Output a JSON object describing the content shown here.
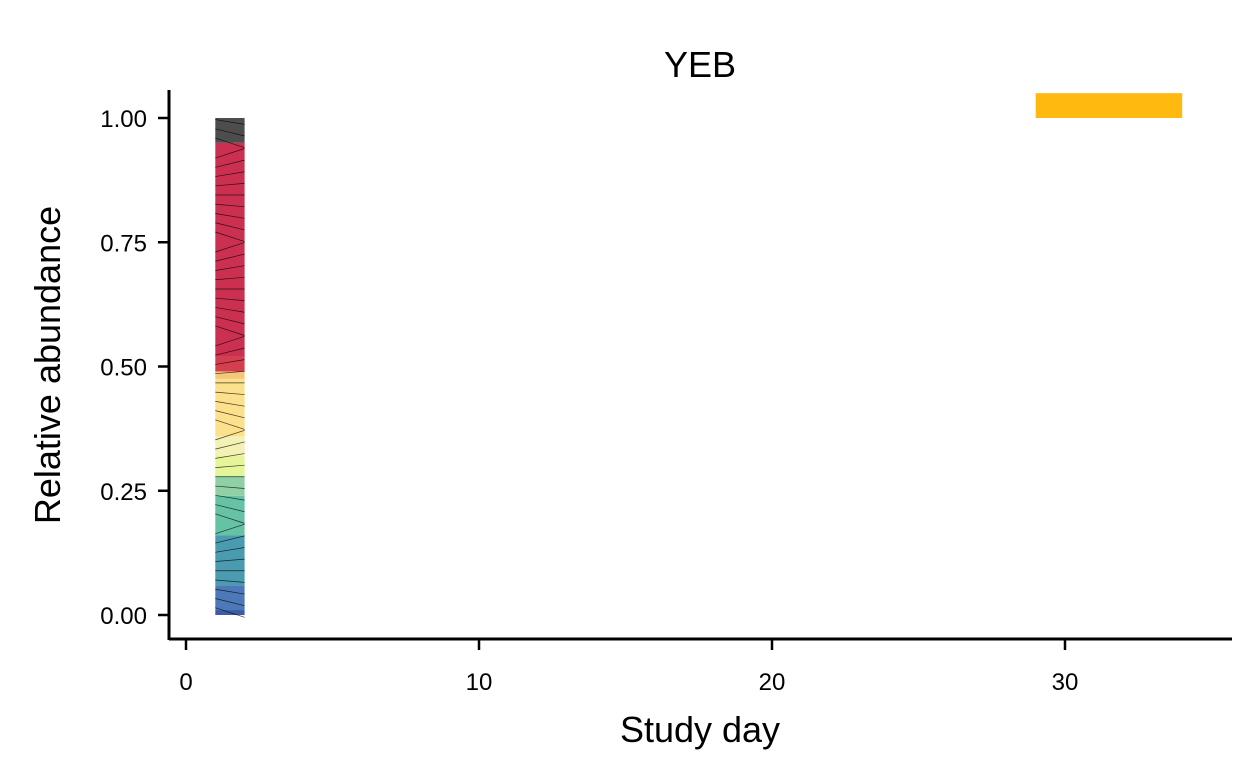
{
  "chart_data": {
    "type": "area",
    "title": "YEB",
    "xlabel": "Study day",
    "ylabel": "Relative abundance",
    "xlim": [
      -0.6,
      35.8
    ],
    "ylim": [
      -0.045,
      1.05
    ],
    "x_ticks": [
      0,
      10,
      20,
      30
    ],
    "x_tick_labels": [
      "0",
      "10",
      "20",
      "30"
    ],
    "y_ticks": [
      0,
      0.25,
      0.5,
      0.75,
      1.0
    ],
    "y_tick_labels": [
      "0.00",
      "0.25",
      "0.50",
      "0.75",
      "1.00"
    ],
    "x_range_of_stack": [
      1,
      2
    ],
    "stack": [
      {
        "color": "#3b5ba8",
        "bottom": 0.0,
        "top": 0.01
      },
      {
        "color": "#4e79b8",
        "bottom": 0.01,
        "top": 0.06
      },
      {
        "color": "#4a9bb0",
        "bottom": 0.06,
        "top": 0.16
      },
      {
        "color": "#66c2a5",
        "bottom": 0.16,
        "top": 0.24
      },
      {
        "color": "#8fd1a5",
        "bottom": 0.24,
        "top": 0.28
      },
      {
        "color": "#e6f598",
        "bottom": 0.28,
        "top": 0.32
      },
      {
        "color": "#f3f1b3",
        "bottom": 0.32,
        "top": 0.36
      },
      {
        "color": "#fde08b",
        "bottom": 0.36,
        "top": 0.475
      },
      {
        "color": "#f5c77a",
        "bottom": 0.475,
        "top": 0.49
      },
      {
        "color": "#d53e4f",
        "bottom": 0.49,
        "top": 0.52
      },
      {
        "color": "#cc3050",
        "bottom": 0.52,
        "top": 0.95
      },
      {
        "color": "#4d4d4d",
        "bottom": 0.95,
        "top": 1.0
      }
    ],
    "highlight_bar": {
      "color": "#ffb90f",
      "x_start": 29,
      "x_end": 34,
      "y_bottom": 1.0,
      "y_top": 1.05
    }
  }
}
